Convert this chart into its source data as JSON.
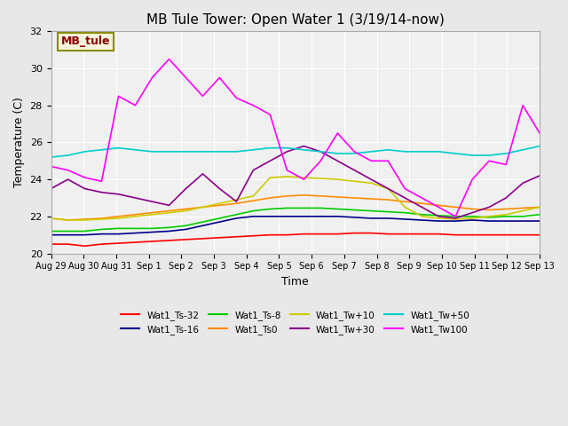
{
  "title": "MB Tule Tower: Open Water 1 (3/19/14-now)",
  "xlabel": "Time",
  "ylabel": "Temperature (C)",
  "ylim": [
    20,
    32
  ],
  "xlim": [
    0,
    15
  ],
  "bg_color": "#e8e8e8",
  "plot_bg": "#f0f0f0",
  "series": {
    "Wat1_Ts-32": {
      "color": "#ff0000",
      "data": [
        20.5,
        20.5,
        20.4,
        20.5,
        20.55,
        20.6,
        20.65,
        20.7,
        20.75,
        20.8,
        20.85,
        20.9,
        20.95,
        21.0,
        21.0,
        21.05,
        21.05,
        21.05,
        21.1,
        21.1,
        21.05,
        21.05,
        21.05,
        21.05,
        21.0,
        21.0,
        21.0,
        21.0,
        21.0,
        21.0
      ]
    },
    "Wat1_Ts-16": {
      "color": "#00008b",
      "data": [
        21.0,
        21.0,
        21.0,
        21.05,
        21.05,
        21.1,
        21.15,
        21.2,
        21.3,
        21.5,
        21.7,
        21.9,
        22.0,
        22.0,
        22.0,
        22.0,
        22.0,
        22.0,
        21.95,
        21.9,
        21.9,
        21.85,
        21.8,
        21.75,
        21.75,
        21.8,
        21.75,
        21.75,
        21.75,
        21.75
      ]
    },
    "Wat1_Ts-8": {
      "color": "#00cc00",
      "data": [
        21.2,
        21.2,
        21.2,
        21.3,
        21.35,
        21.35,
        21.35,
        21.4,
        21.5,
        21.7,
        21.9,
        22.1,
        22.3,
        22.4,
        22.45,
        22.45,
        22.45,
        22.4,
        22.35,
        22.3,
        22.25,
        22.2,
        22.1,
        22.05,
        22.0,
        22.0,
        21.95,
        22.0,
        22.0,
        22.1
      ]
    },
    "Wat1_Ts0": {
      "color": "#ff8c00",
      "data": [
        21.9,
        21.8,
        21.85,
        21.9,
        22.0,
        22.1,
        22.2,
        22.3,
        22.4,
        22.5,
        22.6,
        22.7,
        22.85,
        23.0,
        23.1,
        23.15,
        23.1,
        23.05,
        23.0,
        22.95,
        22.9,
        22.8,
        22.7,
        22.6,
        22.5,
        22.4,
        22.35,
        22.4,
        22.45,
        22.5
      ]
    },
    "Wat1_Tw+10": {
      "color": "#cccc00",
      "data": [
        21.9,
        21.8,
        21.8,
        21.85,
        21.9,
        22.0,
        22.1,
        22.2,
        22.3,
        22.5,
        22.7,
        22.9,
        23.1,
        24.1,
        24.15,
        24.1,
        24.05,
        24.0,
        23.9,
        23.8,
        23.5,
        22.5,
        22.0,
        21.9,
        21.85,
        21.9,
        22.0,
        22.1,
        22.3,
        22.5
      ]
    },
    "Wat1_Tw+30": {
      "color": "#8b008b",
      "data": [
        23.5,
        24.0,
        23.5,
        23.3,
        23.2,
        23.0,
        22.8,
        22.6,
        23.5,
        24.3,
        23.5,
        22.8,
        24.5,
        25.0,
        25.5,
        25.8,
        25.5,
        25.0,
        24.5,
        24.0,
        23.5,
        23.0,
        22.5,
        22.0,
        21.9,
        22.2,
        22.5,
        23.0,
        23.8,
        24.2
      ]
    },
    "Wat1_Tw+50": {
      "color": "#00cccc",
      "data": [
        25.2,
        25.3,
        25.5,
        25.6,
        25.7,
        25.6,
        25.5,
        25.5,
        25.5,
        25.5,
        25.5,
        25.5,
        25.6,
        25.7,
        25.7,
        25.6,
        25.5,
        25.4,
        25.4,
        25.5,
        25.6,
        25.5,
        25.5,
        25.5,
        25.4,
        25.3,
        25.3,
        25.4,
        25.6,
        25.8
      ]
    },
    "Wat1_Tw100": {
      "color": "#ff00ff",
      "data": [
        24.7,
        24.5,
        24.1,
        23.9,
        28.5,
        28.0,
        29.5,
        30.5,
        29.5,
        28.5,
        29.5,
        28.4,
        28.0,
        27.5,
        24.5,
        24.0,
        25.0,
        26.5,
        25.5,
        25.0,
        25.0,
        23.5,
        23.0,
        22.5,
        22.0,
        24.0,
        25.0,
        24.8,
        28.0,
        26.5
      ]
    }
  },
  "xtick_labels": [
    "Aug 29",
    "Aug 30",
    "Aug 31",
    "Sep 1",
    "Sep 2",
    "Sep 3",
    "Sep 4",
    "Sep 5",
    "Sep 6",
    "Sep 7",
    "Sep 8",
    "Sep 9",
    "Sep 10",
    "Sep 11",
    "Sep 12",
    "Sep 13"
  ],
  "ytick_labels": [
    20,
    22,
    24,
    26,
    28,
    30,
    32
  ],
  "annotation_text": "MB_tule",
  "annotation_color": "#8b0000",
  "annotation_bg": "#f5f5dc",
  "annotation_border": "#8b8b00"
}
